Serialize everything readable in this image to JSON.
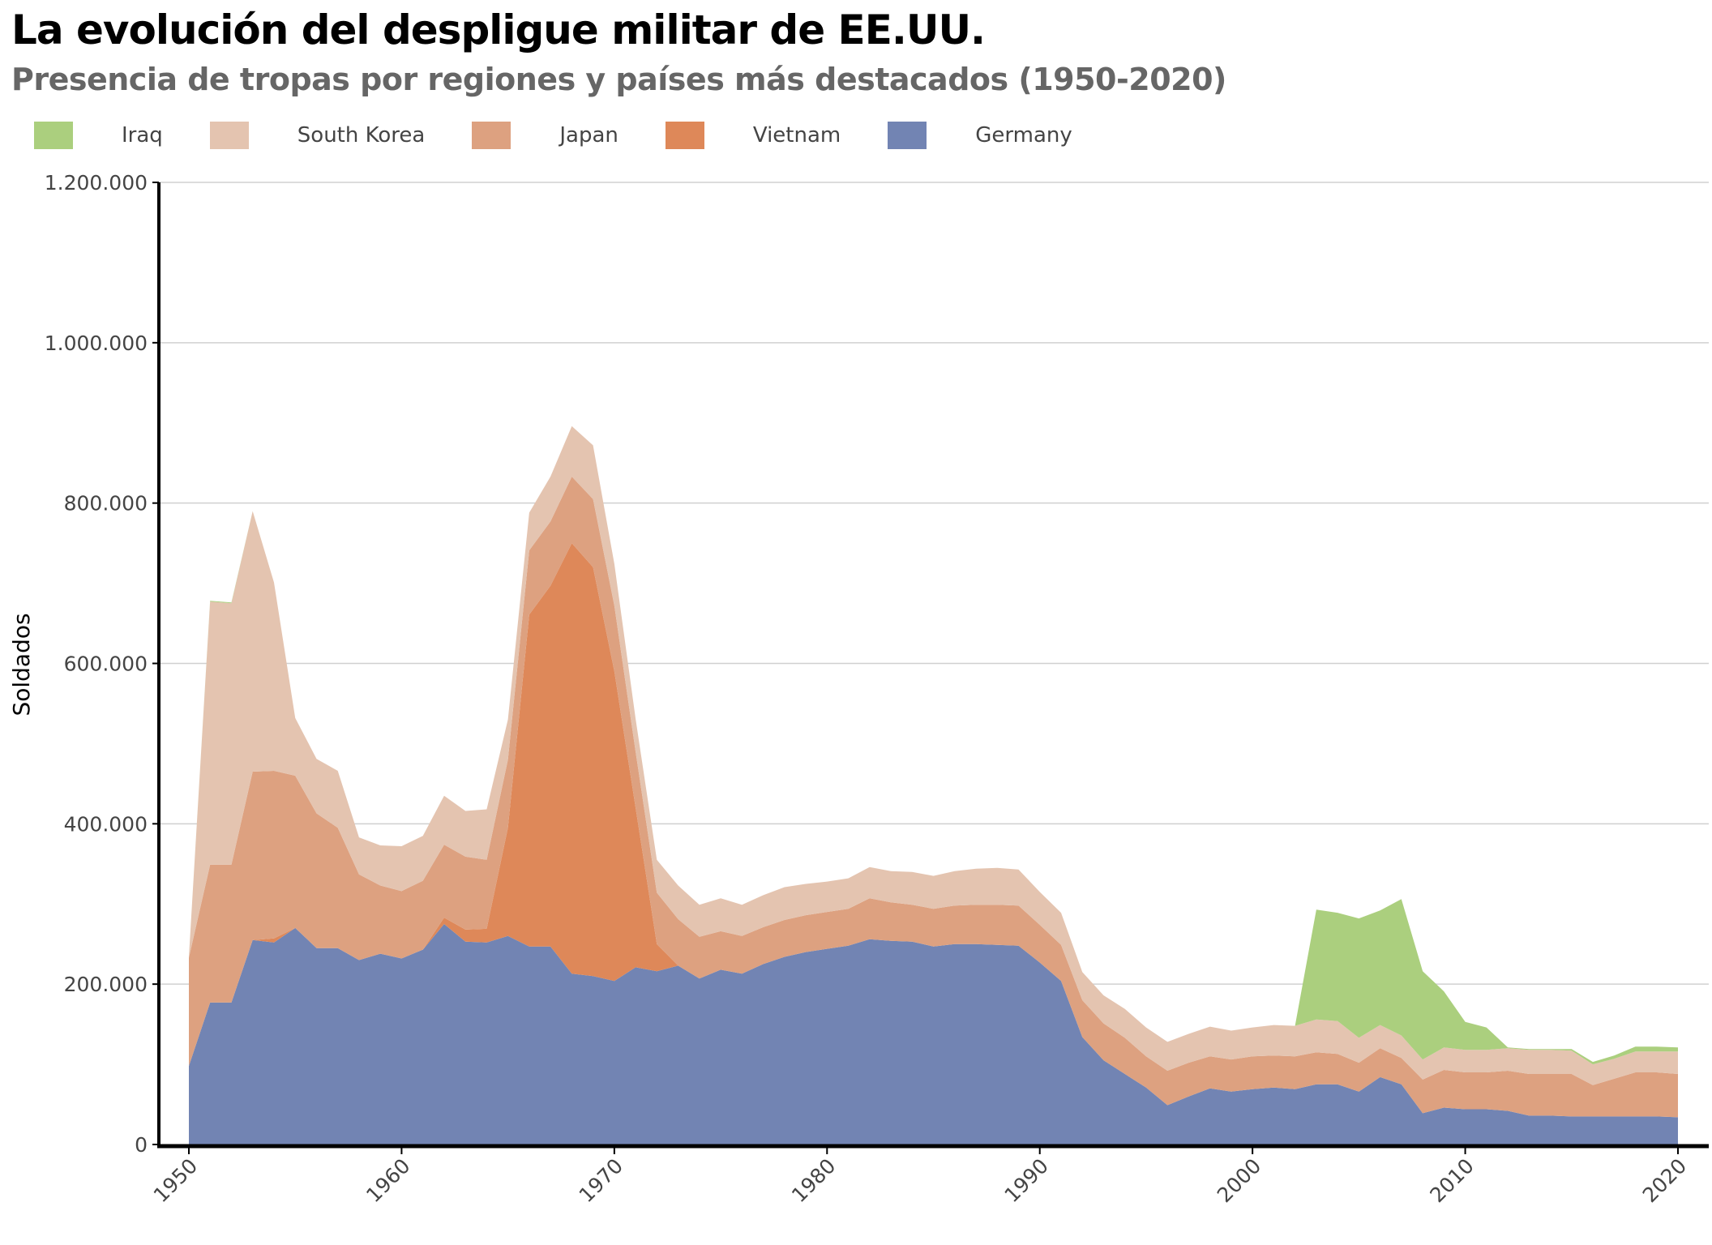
{
  "title": "La evolución del despligue militar de EE.UU.",
  "subtitle": "Presencia de tropas por regiones y países más destacados (1950-2020)",
  "chart_data": {
    "type": "area",
    "stacked": true,
    "ylabel": "Soldados",
    "xlabel": "",
    "xlim": [
      1950,
      2020
    ],
    "ylim": [
      0,
      1200000
    ],
    "grid": true,
    "legend_position": "top-left",
    "x_ticks": [
      "1950",
      "1960",
      "1970",
      "1980",
      "1990",
      "2000",
      "2010",
      "2020"
    ],
    "y_ticks": [
      "0",
      "200.000",
      "400.000",
      "600.000",
      "800.000",
      "1.000.000",
      "1.200.000"
    ],
    "y_tick_values": [
      0,
      200000,
      400000,
      600000,
      800000,
      1000000,
      1200000
    ],
    "x_start": 1950,
    "series": [
      {
        "name": "Germany",
        "color": "#7284b3",
        "values": [
          98000,
          177000,
          177000,
          255000,
          252000,
          270000,
          245000,
          245000,
          230000,
          238000,
          232000,
          243000,
          275000,
          253000,
          252000,
          260000,
          247000,
          247000,
          213000,
          210000,
          204000,
          221000,
          216000,
          223000,
          207000,
          218000,
          213000,
          225000,
          234000,
          240000,
          244000,
          248000,
          256000,
          254000,
          253000,
          247000,
          250000,
          250000,
          249000,
          248000,
          227000,
          204000,
          134000,
          105000,
          88000,
          71000,
          49000,
          60000,
          70000,
          66000,
          69000,
          71000,
          69000,
          75000,
          75000,
          66000,
          84000,
          75000,
          39000,
          46000,
          44000,
          44000,
          42000,
          36000,
          36000,
          35000,
          35000,
          35000,
          35000,
          35000,
          34000
        ]
      },
      {
        "name": "Vietnam",
        "color": "#de8859",
        "values": [
          0,
          0,
          0,
          0,
          5000,
          0,
          0,
          0,
          0,
          0,
          0,
          0,
          8000,
          15000,
          17000,
          135000,
          414000,
          450000,
          537000,
          510000,
          386000,
          199000,
          34000,
          0,
          0,
          0,
          0,
          0,
          0,
          0,
          0,
          0,
          0,
          0,
          0,
          0,
          0,
          0,
          0,
          0,
          0,
          0,
          0,
          0,
          0,
          0,
          0,
          0,
          0,
          0,
          0,
          0,
          0,
          0,
          0,
          0,
          0,
          0,
          0,
          0,
          0,
          0,
          0,
          0,
          0,
          0,
          0,
          0,
          0,
          0,
          0
        ]
      },
      {
        "name": "Japan",
        "color": "#dda180",
        "values": [
          135000,
          172000,
          172000,
          210000,
          209000,
          190000,
          168000,
          150000,
          107000,
          85000,
          84000,
          86000,
          91000,
          91000,
          86000,
          85000,
          80000,
          80000,
          83000,
          85000,
          82000,
          70000,
          64000,
          58000,
          52000,
          48000,
          47000,
          46000,
          46000,
          46000,
          46000,
          46000,
          51000,
          48000,
          46000,
          47000,
          48000,
          49000,
          50000,
          50000,
          47000,
          45000,
          46000,
          46000,
          45000,
          39000,
          43000,
          42000,
          40000,
          40000,
          41000,
          40000,
          41000,
          40000,
          38000,
          36000,
          36000,
          33000,
          42000,
          47000,
          46000,
          46000,
          50000,
          52000,
          52000,
          53000,
          39000,
          47000,
          55000,
          55000,
          54000
        ]
      },
      {
        "name": "South Korea",
        "color": "#e4c4b0",
        "values": [
          1000,
          328000,
          326000,
          325000,
          235000,
          72000,
          68000,
          71000,
          46000,
          50000,
          56000,
          56000,
          61000,
          57000,
          63000,
          50000,
          47000,
          56000,
          63000,
          67000,
          52000,
          41000,
          41000,
          42000,
          40000,
          41000,
          39000,
          40000,
          41000,
          39000,
          38000,
          38000,
          39000,
          39000,
          41000,
          41000,
          43000,
          45000,
          46000,
          45000,
          41000,
          40000,
          35000,
          35000,
          36000,
          36000,
          36000,
          36000,
          37000,
          36000,
          36000,
          38000,
          38000,
          41000,
          41000,
          31000,
          29000,
          28000,
          25000,
          28000,
          28000,
          28000,
          28000,
          30000,
          30000,
          29000,
          26000,
          25000,
          26000,
          26000,
          28000
        ]
      },
      {
        "name": "Iraq",
        "color": "#abcf7e",
        "values": [
          0,
          1000,
          1000,
          0,
          0,
          0,
          0,
          0,
          0,
          0,
          0,
          0,
          0,
          0,
          0,
          0,
          0,
          0,
          0,
          0,
          0,
          0,
          0,
          0,
          0,
          0,
          0,
          0,
          0,
          0,
          0,
          0,
          0,
          0,
          0,
          0,
          0,
          0,
          0,
          0,
          0,
          0,
          0,
          0,
          0,
          0,
          0,
          0,
          0,
          0,
          0,
          0,
          0,
          137000,
          135000,
          149000,
          143000,
          170000,
          110000,
          70000,
          35000,
          28000,
          1000,
          1000,
          1000,
          2000,
          3000,
          4000,
          6000,
          6000,
          5000
        ]
      }
    ]
  },
  "legend": {
    "items": [
      "Iraq",
      "South Korea",
      "Japan",
      "Vietnam",
      "Germany"
    ]
  }
}
